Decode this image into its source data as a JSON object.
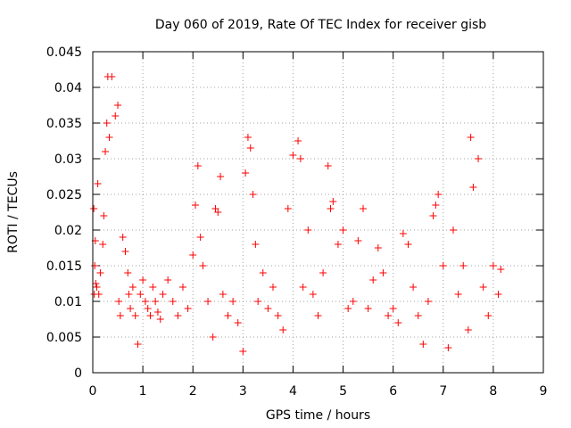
{
  "chart_data": {
    "type": "scatter",
    "title": "Day 060 of 2019, Rate Of TEC Index for receiver gisb",
    "xlabel": "GPS time / hours",
    "ylabel": "ROTI / TECUs",
    "xlim": [
      0,
      9
    ],
    "ylim": [
      0,
      0.045
    ],
    "x_ticks": [
      0,
      1,
      2,
      3,
      4,
      5,
      6,
      7,
      8,
      9
    ],
    "x_tick_labels": [
      "0",
      "1",
      "2",
      "3",
      "4",
      "5",
      "6",
      "7",
      "8",
      "9"
    ],
    "y_ticks": [
      0,
      0.005,
      0.01,
      0.015,
      0.02,
      0.025,
      0.03,
      0.035,
      0.04,
      0.045
    ],
    "y_tick_labels": [
      "0",
      "0.005",
      "0.01",
      "0.015",
      "0.02",
      "0.025",
      "0.03",
      "0.035",
      "0.04",
      "0.045"
    ],
    "grid": true,
    "marker": "+",
    "marker_color": "#ff0000",
    "series": [
      {
        "name": "ROTI",
        "x": [
          0.02,
          0.03,
          0.04,
          0.05,
          0.06,
          0.08,
          0.1,
          0.12,
          0.15,
          0.2,
          0.22,
          0.25,
          0.28,
          0.3,
          0.33,
          0.38,
          0.45,
          0.5,
          0.52,
          0.55,
          0.6,
          0.65,
          0.7,
          0.72,
          0.75,
          0.8,
          0.85,
          0.9,
          0.95,
          1.0,
          1.05,
          1.1,
          1.15,
          1.2,
          1.25,
          1.3,
          1.35,
          1.4,
          1.5,
          1.6,
          1.7,
          1.8,
          1.9,
          2.0,
          2.05,
          2.1,
          2.15,
          2.2,
          2.3,
          2.4,
          2.45,
          2.5,
          2.55,
          2.6,
          2.7,
          2.8,
          2.9,
          3.0,
          3.05,
          3.1,
          3.15,
          3.2,
          3.25,
          3.3,
          3.4,
          3.5,
          3.6,
          3.7,
          3.8,
          3.9,
          4.0,
          4.1,
          4.15,
          4.2,
          4.3,
          4.4,
          4.5,
          4.6,
          4.7,
          4.75,
          4.8,
          4.9,
          5.0,
          5.1,
          5.2,
          5.3,
          5.4,
          5.5,
          5.6,
          5.7,
          5.8,
          5.9,
          6.0,
          6.1,
          6.2,
          6.3,
          6.4,
          6.5,
          6.6,
          6.7,
          6.8,
          6.85,
          6.9,
          7.0,
          7.1,
          7.2,
          7.3,
          7.4,
          7.5,
          7.55,
          7.6,
          7.7,
          7.8,
          7.9,
          8.0,
          8.1,
          8.15
        ],
        "y": [
          0.023,
          0.011,
          0.015,
          0.0185,
          0.0125,
          0.012,
          0.0265,
          0.011,
          0.014,
          0.018,
          0.022,
          0.031,
          0.035,
          0.0415,
          0.033,
          0.0415,
          0.036,
          0.0375,
          0.01,
          0.008,
          0.019,
          0.017,
          0.014,
          0.011,
          0.009,
          0.012,
          0.008,
          0.004,
          0.011,
          0.013,
          0.01,
          0.009,
          0.008,
          0.012,
          0.01,
          0.0085,
          0.0075,
          0.011,
          0.013,
          0.01,
          0.008,
          0.012,
          0.009,
          0.0165,
          0.0235,
          0.029,
          0.019,
          0.015,
          0.01,
          0.005,
          0.023,
          0.0225,
          0.0275,
          0.011,
          0.008,
          0.01,
          0.007,
          0.003,
          0.028,
          0.033,
          0.0315,
          0.025,
          0.018,
          0.01,
          0.014,
          0.009,
          0.012,
          0.008,
          0.006,
          0.023,
          0.0305,
          0.0325,
          0.03,
          0.012,
          0.02,
          0.011,
          0.008,
          0.014,
          0.029,
          0.023,
          0.024,
          0.018,
          0.02,
          0.009,
          0.01,
          0.0185,
          0.023,
          0.009,
          0.013,
          0.0175,
          0.014,
          0.008,
          0.009,
          0.007,
          0.0195,
          0.018,
          0.012,
          0.008,
          0.004,
          0.01,
          0.022,
          0.0235,
          0.025,
          0.015,
          0.0035,
          0.02,
          0.011,
          0.015,
          0.006,
          0.033,
          0.026,
          0.03,
          0.012,
          0.008,
          0.015,
          0.011,
          0.0145
        ]
      }
    ]
  }
}
